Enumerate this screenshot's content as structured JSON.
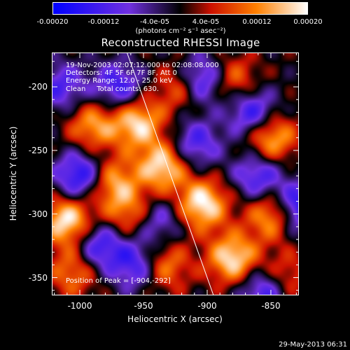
{
  "colorbar": {
    "ticks": [
      "-0.00020",
      "-0.00012",
      "-4.0e-05",
      "4.0e-05",
      "0.00012",
      "0.00020"
    ],
    "tick_values": [
      -0.0002,
      -0.00012,
      -4e-05,
      4e-05,
      0.00012,
      0.0002
    ],
    "range": [
      -0.0002,
      0.0002
    ],
    "units": "(photons cm⁻² s⁻¹ asec⁻²)",
    "colors": [
      "#0000ff",
      "#7030e0",
      "#000000",
      "#cc1000",
      "#ff8000",
      "#ffffff"
    ]
  },
  "chart_data": {
    "type": "heatmap",
    "title": "Reconstructed RHESSI Image",
    "xlabel": "Heliocentric X (arcsec)",
    "ylabel": "Heliocentric Y (arcsec)",
    "xlim": [
      -1022,
      -828
    ],
    "ylim": [
      -364,
      -173
    ],
    "xticks": [
      -1000,
      -950,
      -900,
      -850
    ],
    "xtick_labels": [
      "-1000",
      "-950",
      "-900",
      "-850"
    ],
    "yticks": [
      -200,
      -250,
      -300,
      -350
    ],
    "ytick_labels": [
      "-200",
      "-250",
      "-300",
      "-350"
    ],
    "annotations": {
      "time_range": "19-Nov-2003 02:07:12.000 to 02:08:08.000",
      "detectors": "Detectors: 4F 5F 6F 7F 8F, Att 0",
      "energy": "Energy Range: 12.0 - 25.0 keV",
      "clean": "Clean     Total counts: 630.",
      "peak": "Position of Peak = [-904,-292]"
    },
    "peak": [
      -904,
      -292
    ],
    "limb_line": {
      "x": [
        -963,
        -895
      ],
      "y": [
        -173,
        -364
      ]
    },
    "bright_sources": [
      {
        "x": -1010,
        "y": -305,
        "v": 0.0002
      },
      {
        "x": -975,
        "y": -275,
        "v": 0.00015
      },
      {
        "x": -990,
        "y": -230,
        "v": 0.00014
      },
      {
        "x": -955,
        "y": -228,
        "v": 0.00018
      },
      {
        "x": -935,
        "y": -262,
        "v": 0.00019
      },
      {
        "x": -904,
        "y": -292,
        "v": 0.0002
      },
      {
        "x": -880,
        "y": -335,
        "v": 0.00019
      },
      {
        "x": -848,
        "y": -300,
        "v": 0.00018
      },
      {
        "x": -850,
        "y": -240,
        "v": 0.00017
      },
      {
        "x": -920,
        "y": -200,
        "v": 0.00013
      },
      {
        "x": -880,
        "y": -195,
        "v": 0.00012
      },
      {
        "x": -1005,
        "y": -345,
        "v": 0.00012
      },
      {
        "x": -935,
        "y": -340,
        "v": 0.00014
      },
      {
        "x": -960,
        "y": -300,
        "v": 0.00013
      },
      {
        "x": -840,
        "y": -350,
        "v": 0.00011
      }
    ],
    "dark_sources": [
      {
        "x": -1000,
        "y": -270,
        "v": -0.00018
      },
      {
        "x": -955,
        "y": -340,
        "v": -0.00015
      },
      {
        "x": -905,
        "y": -195,
        "v": -0.00019
      },
      {
        "x": -865,
        "y": -220,
        "v": -0.00016
      },
      {
        "x": -830,
        "y": -295,
        "v": -0.0002
      },
      {
        "x": -970,
        "y": -200,
        "v": -0.00014
      },
      {
        "x": -910,
        "y": -245,
        "v": -0.00013
      },
      {
        "x": -860,
        "y": -270,
        "v": -0.00014
      },
      {
        "x": -940,
        "y": -305,
        "v": -0.00012
      },
      {
        "x": -985,
        "y": -325,
        "v": -0.00015
      },
      {
        "x": -855,
        "y": -360,
        "v": -0.00016
      },
      {
        "x": -1015,
        "y": -200,
        "v": -0.00012
      }
    ]
  },
  "datestamp": "29-May-2013 06:31"
}
